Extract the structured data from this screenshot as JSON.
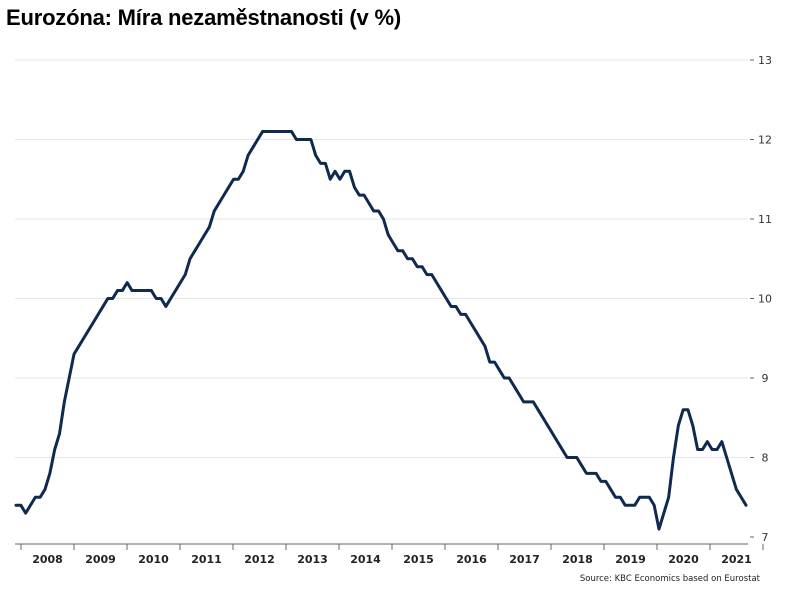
{
  "chart_data": {
    "type": "line",
    "title": "Eurozóna: Míra nezaměstnanosti (v %)",
    "source": "Source: KBC Economics based on Eurostat",
    "xlabel": "",
    "ylabel": "",
    "ylim": [
      7,
      13
    ],
    "y_ticks": [
      7,
      8,
      9,
      10,
      11,
      12,
      13
    ],
    "x_tick_labels": [
      "2008",
      "2009",
      "2010",
      "2011",
      "2012",
      "2013",
      "2014",
      "2015",
      "2016",
      "2017",
      "2018",
      "2019",
      "2020",
      "2021"
    ],
    "y_axis_position": "right",
    "grid": "horizontal",
    "legend": "none",
    "colors": {
      "line": "#0e2a4e",
      "grid": "#e6e6e6",
      "axis": "#666666"
    },
    "series": [
      {
        "values": [
          7.4,
          7.4,
          7.3,
          7.4,
          7.5,
          7.5,
          7.6,
          7.8,
          8.1,
          8.3,
          8.7,
          9.0,
          9.3,
          9.4,
          9.5,
          9.6,
          9.7,
          9.8,
          9.9,
          10.0,
          10.0,
          10.1,
          10.1,
          10.2,
          10.1,
          10.1,
          10.1,
          10.1,
          10.1,
          10.0,
          10.0,
          9.9,
          10.0,
          10.1,
          10.2,
          10.3,
          10.5,
          10.6,
          10.7,
          10.8,
          10.9,
          11.1,
          11.2,
          11.3,
          11.4,
          11.5,
          11.5,
          11.6,
          11.8,
          11.9,
          12.0,
          12.1,
          12.1,
          12.1,
          12.1,
          12.1,
          12.1,
          12.1,
          12.0,
          12.0,
          12.0,
          12.0,
          11.8,
          11.7,
          11.7,
          11.5,
          11.6,
          11.5,
          11.6,
          11.6,
          11.4,
          11.3,
          11.3,
          11.2,
          11.1,
          11.1,
          11.0,
          10.8,
          10.7,
          10.6,
          10.6,
          10.5,
          10.5,
          10.4,
          10.4,
          10.3,
          10.3,
          10.2,
          10.1,
          10.0,
          9.9,
          9.9,
          9.8,
          9.8,
          9.7,
          9.6,
          9.5,
          9.4,
          9.2,
          9.2,
          9.1,
          9.0,
          9.0,
          8.9,
          8.8,
          8.7,
          8.7,
          8.7,
          8.6,
          8.5,
          8.4,
          8.3,
          8.2,
          8.1,
          8.0,
          8.0,
          8.0,
          7.9,
          7.8,
          7.8,
          7.8,
          7.7,
          7.7,
          7.6,
          7.5,
          7.5,
          7.4,
          7.4,
          7.4,
          7.5,
          7.5,
          7.5,
          7.4,
          7.1,
          7.3,
          7.5,
          8.0,
          8.4,
          8.6,
          8.6,
          8.4,
          8.1,
          8.1,
          8.2,
          8.1,
          8.1,
          8.2,
          8.0,
          7.8,
          7.6,
          7.5,
          7.4
        ]
      }
    ]
  }
}
